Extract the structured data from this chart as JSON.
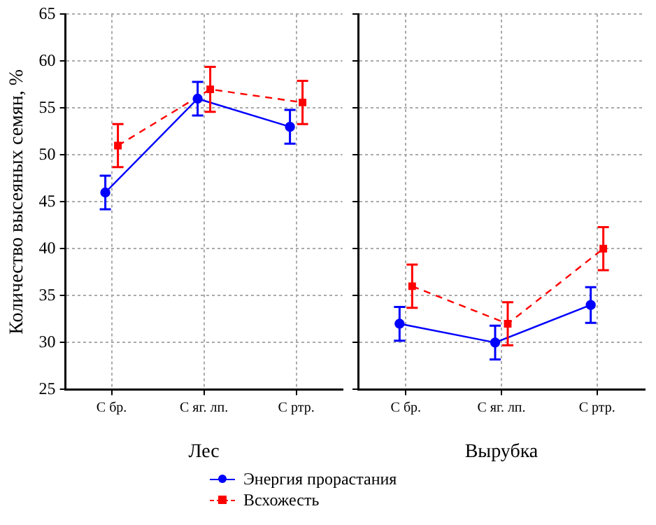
{
  "chart_data": [
    {
      "type": "line",
      "xlabel": "Лес",
      "ylabel": "Количество высеяных семян, %",
      "categories": [
        "С бр.",
        "С яг. лп.",
        "С ртр."
      ],
      "ylim": [
        25,
        65
      ],
      "yticks": [
        25,
        30,
        35,
        40,
        45,
        50,
        55,
        60,
        65
      ],
      "grid": true,
      "legend": "bottom",
      "series": [
        {
          "name": "Энергия прорастания",
          "color": "#0000ff",
          "marker": "circle",
          "line_style": "solid",
          "values": [
            46,
            56,
            53
          ],
          "errors": [
            1.8,
            1.8,
            1.8
          ]
        },
        {
          "name": "Всхожесть",
          "color": "#ff0000",
          "marker": "square",
          "line_style": "dashed",
          "values": [
            51,
            57,
            55.6
          ],
          "errors": [
            2.3,
            2.4,
            2.3
          ]
        }
      ]
    },
    {
      "type": "line",
      "xlabel": "Вырубка",
      "categories": [
        "С бр.",
        "С яг. лп.",
        "С ртр."
      ],
      "ylim": [
        25,
        65
      ],
      "yticks": [
        25,
        30,
        35,
        40,
        45,
        50,
        55,
        60,
        65
      ],
      "grid": true,
      "tick_labels": "x",
      "series": [
        {
          "color": "#0000ff",
          "marker": "circle",
          "line_style": "solid",
          "values": [
            32,
            30,
            34
          ],
          "errors": [
            1.8,
            1.8,
            1.9
          ]
        },
        {
          "color": "#ff0000",
          "marker": "square",
          "line_style": "dashed",
          "values": [
            36,
            32,
            40
          ],
          "errors": [
            2.3,
            2.3,
            2.3
          ]
        }
      ]
    }
  ]
}
